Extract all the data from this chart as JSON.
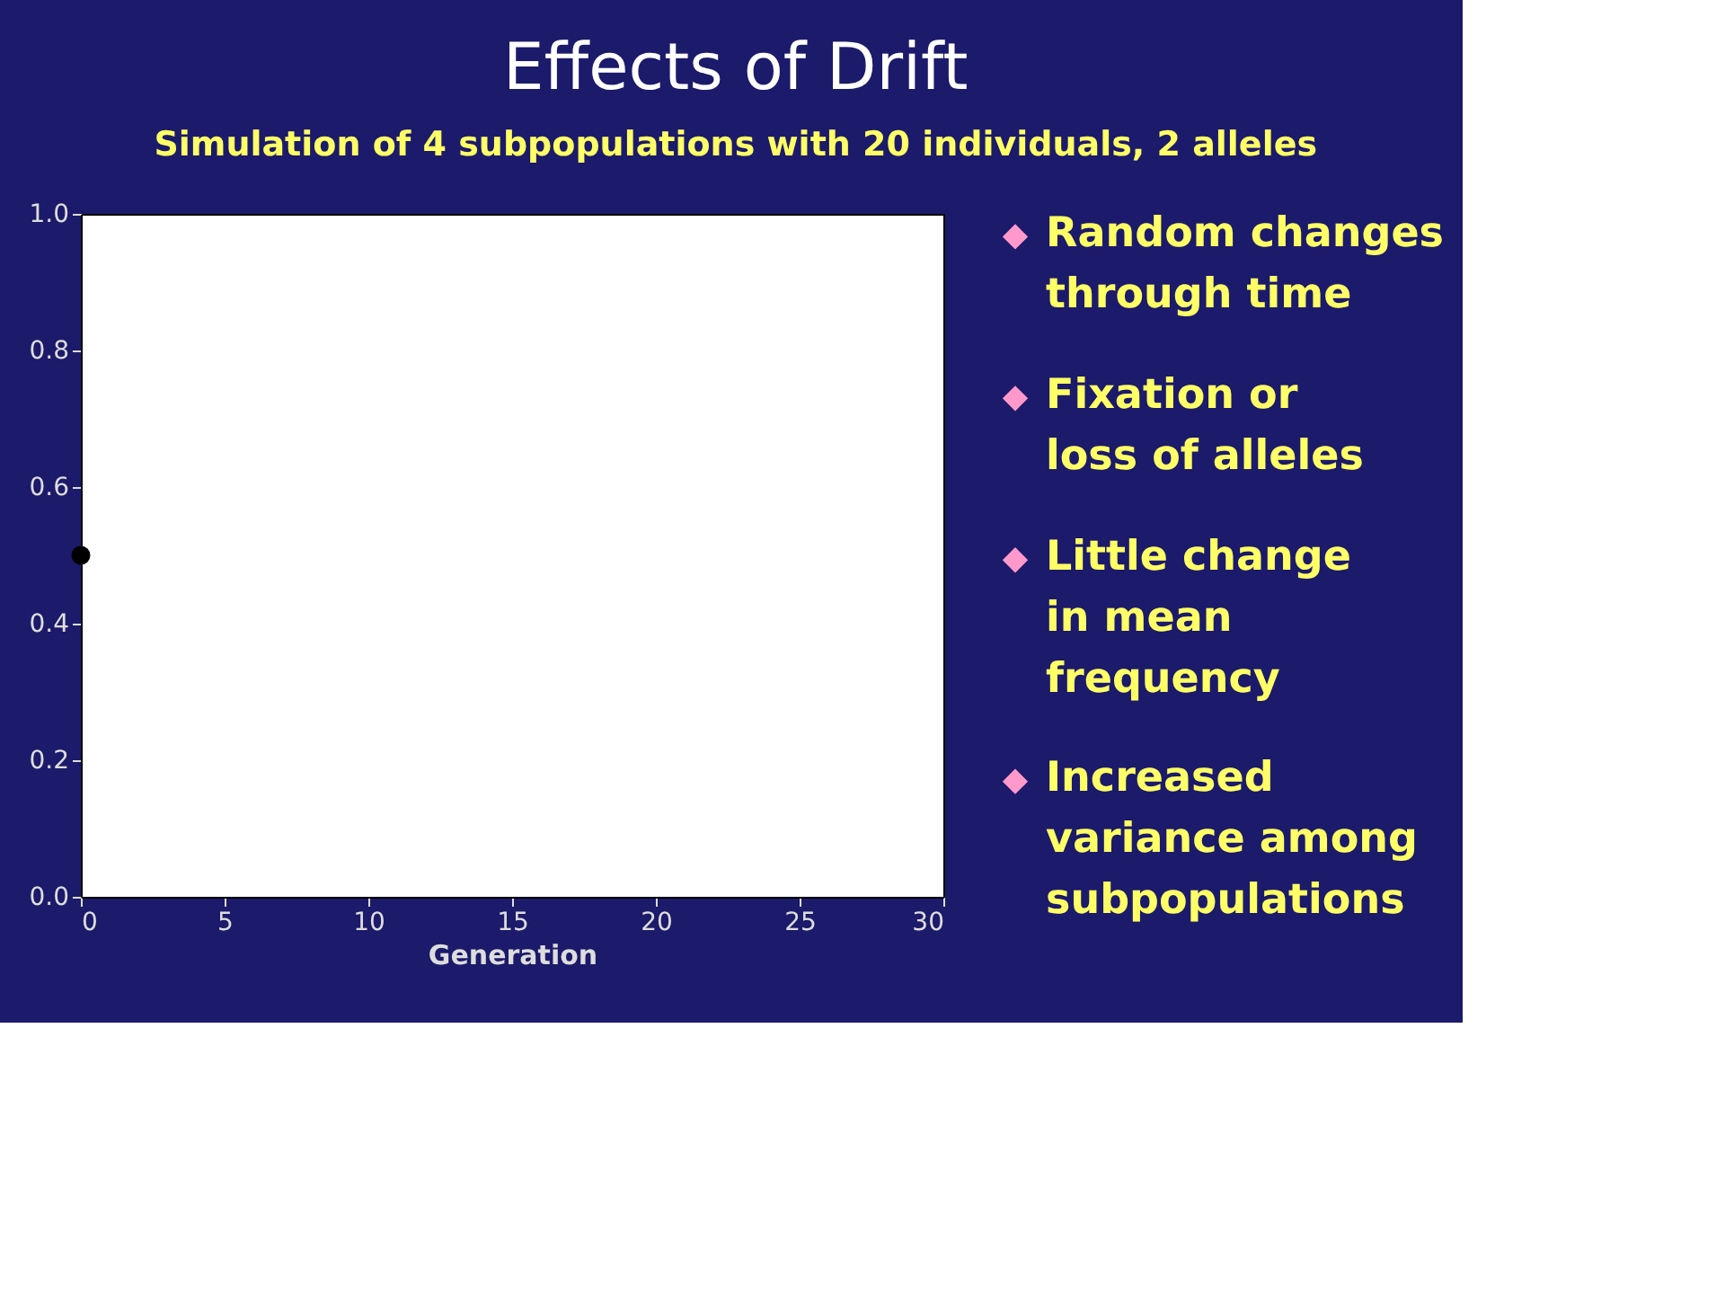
{
  "chart_data": {
    "type": "scatter",
    "title": "Effects of Drift",
    "subtitle": "Simulation of 4 subpopulations with 20 individuals, 2 alleles",
    "xlabel": "Generation",
    "x": [
      0
    ],
    "series": [
      {
        "color": "#000000",
        "values": [
          0.5
        ]
      }
    ],
    "xlim": [
      0,
      30
    ],
    "xticks": [
      0,
      5,
      10,
      15,
      20,
      25,
      30
    ],
    "ylim": [
      0,
      1
    ],
    "yticks": [
      {
        "value": 0,
        "label": "0.0"
      },
      0.2,
      0.4,
      0.6,
      0.8,
      {
        "value": 1,
        "label": "1.0"
      }
    ],
    "marker": "circle",
    "grid": false,
    "annotations": [
      "Random changes through time",
      "Fixation or loss of alleles",
      "Little change in mean frequency",
      "Increased variance among subpopulations"
    ]
  }
}
